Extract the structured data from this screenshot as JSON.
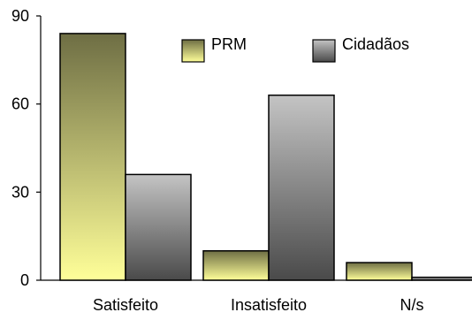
{
  "chart_data": {
    "type": "bar",
    "categories": [
      "Satisfeito",
      "Insatisfeito",
      "N/s"
    ],
    "series": [
      {
        "name": "PRM",
        "values": [
          84,
          10,
          6
        ],
        "gradient": [
          "#6e6e44",
          "#ffff99"
        ]
      },
      {
        "name": "Cidadãos",
        "values": [
          36,
          63,
          1
        ],
        "gradient": [
          "#c4c4c4",
          "#4a4a4a"
        ]
      }
    ],
    "yticks": [
      "0",
      "30",
      "60",
      "90"
    ],
    "ylim": [
      0,
      90
    ],
    "grid": false,
    "legend": "top-right"
  }
}
